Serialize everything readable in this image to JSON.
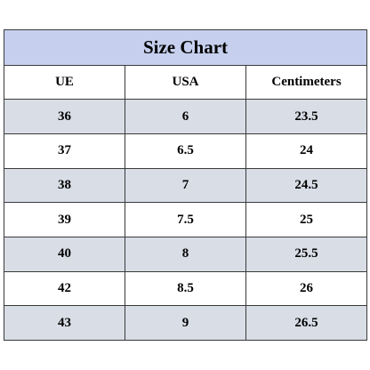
{
  "table": {
    "title": "Size Chart",
    "columns": [
      "UE",
      "USA",
      "Centimeters"
    ],
    "rows": [
      [
        "36",
        "6",
        "23.5"
      ],
      [
        "37",
        "6.5",
        "24"
      ],
      [
        "38",
        "7",
        "24.5"
      ],
      [
        "39",
        "7.5",
        "25"
      ],
      [
        "40",
        "8",
        "25.5"
      ],
      [
        "42",
        "8.5",
        "26"
      ],
      [
        "43",
        "9",
        "26.5"
      ]
    ]
  },
  "colors": {
    "title_bg": "#c6d0ee",
    "shaded_row_bg": "#d9dde6",
    "border": "#3a3a3a"
  }
}
